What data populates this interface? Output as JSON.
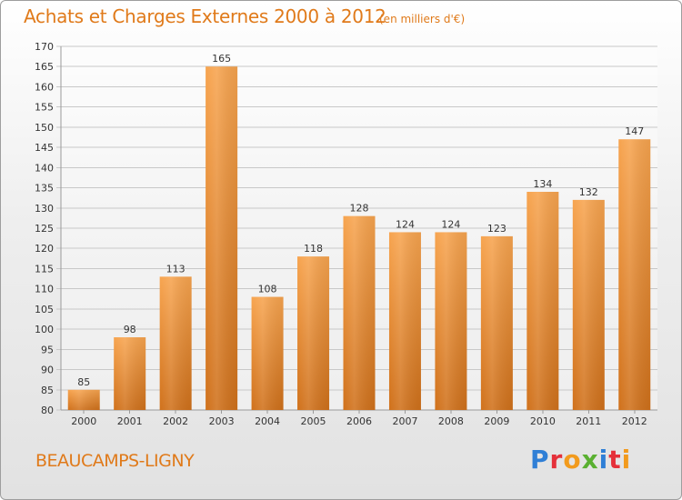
{
  "title": "Achats et Charges Externes 2000 à 2012",
  "unit": "(en milliers d'€)",
  "commune": "BEAUCAMPS-LIGNY",
  "logo": {
    "text": "Proxiti",
    "colors": [
      "#2f7fd6",
      "#e5303a",
      "#f29b1d",
      "#5ab031",
      "#2f7fd6",
      "#e5303a",
      "#f29b1d"
    ]
  },
  "colors": {
    "bar": "#f5a04a",
    "text_accent": "#e07a1a"
  },
  "chart_data": {
    "type": "bar",
    "categories": [
      "2000",
      "2001",
      "2002",
      "2003",
      "2004",
      "2005",
      "2006",
      "2007",
      "2008",
      "2009",
      "2010",
      "2011",
      "2012"
    ],
    "values": [
      85,
      98,
      113,
      165,
      108,
      118,
      128,
      124,
      124,
      123,
      134,
      132,
      147
    ],
    "ylim": [
      80,
      170
    ],
    "yticks": [
      80,
      85,
      90,
      95,
      100,
      105,
      110,
      115,
      120,
      125,
      130,
      135,
      140,
      145,
      150,
      155,
      160,
      165,
      170
    ],
    "grid": true,
    "legend": "none"
  }
}
